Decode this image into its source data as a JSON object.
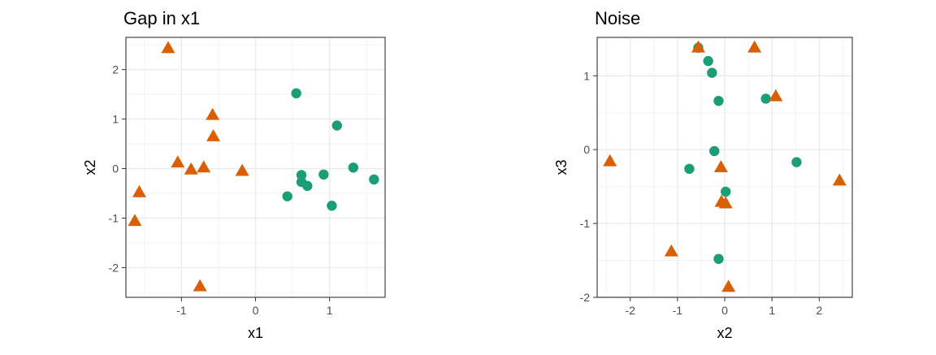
{
  "chart_data": [
    {
      "type": "scatter",
      "title": "Gap in x1",
      "xlabel": "x1",
      "ylabel": "x2",
      "xlim": [
        -1.75,
        1.75
      ],
      "ylim": [
        -2.6,
        2.65
      ],
      "x_ticks": [
        -1,
        0,
        1
      ],
      "y_ticks": [
        -2,
        -1,
        0,
        1,
        2
      ],
      "x_tick_labels": [
        "-1",
        "0",
        "1"
      ],
      "y_tick_labels": [
        "-2",
        "-1",
        "0",
        "1",
        "2"
      ],
      "grid": true,
      "series": [
        {
          "marker": "circle",
          "color": "#1B9E77",
          "x": [
            0.55,
            1.1,
            0.92,
            1.32,
            1.6,
            0.62,
            0.62,
            0.7,
            0.43,
            1.03
          ],
          "y": [
            1.52,
            0.87,
            -0.12,
            0.02,
            -0.22,
            -0.13,
            -0.27,
            -0.35,
            -0.56,
            -0.75
          ]
        },
        {
          "marker": "triangle",
          "color": "#D95F02",
          "x": [
            -1.18,
            -0.58,
            -0.57,
            -1.05,
            -0.87,
            -0.7,
            -0.18,
            -1.57,
            -1.63,
            -0.75
          ],
          "y": [
            2.43,
            1.08,
            0.65,
            0.12,
            -0.02,
            0.02,
            -0.05,
            -0.48,
            -1.06,
            -2.38
          ]
        }
      ]
    },
    {
      "type": "scatter",
      "title": "Noise",
      "xlabel": "x2",
      "ylabel": "x3",
      "xlim": [
        -2.7,
        2.7
      ],
      "ylim": [
        -2.0,
        1.52
      ],
      "x_ticks": [
        -2,
        -1,
        0,
        1,
        2
      ],
      "y_ticks": [
        -2,
        -1,
        0,
        1
      ],
      "x_tick_labels": [
        "-2",
        "-1",
        "0",
        "1",
        "2"
      ],
      "y_tick_labels": [
        "-2",
        "-1",
        "0",
        "1"
      ],
      "grid": true,
      "series": [
        {
          "marker": "circle",
          "color": "#1B9E77",
          "x": [
            -0.56,
            -0.35,
            -0.27,
            -0.13,
            0.87,
            -0.22,
            1.52,
            -0.75,
            0.02,
            -0.13
          ],
          "y": [
            1.38,
            1.2,
            1.04,
            0.66,
            0.69,
            -0.02,
            -0.17,
            -0.26,
            -0.57,
            -1.48
          ]
        },
        {
          "marker": "triangle",
          "color": "#D95F02",
          "x": [
            -0.56,
            0.63,
            1.08,
            -2.43,
            -0.08,
            2.43,
            -0.07,
            0.02,
            -1.13,
            0.08
          ],
          "y": [
            1.38,
            1.38,
            0.72,
            -0.16,
            -0.24,
            -0.42,
            -0.71,
            -0.73,
            -1.38,
            -1.86
          ]
        }
      ]
    }
  ]
}
